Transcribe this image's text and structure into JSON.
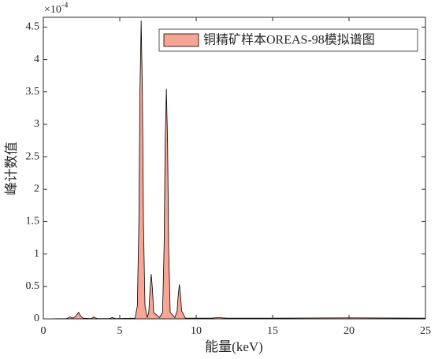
{
  "chart_data": {
    "type": "area",
    "xlabel": "能量(keV)",
    "ylabel": "峰计数值",
    "y_scale_base": "×10",
    "y_scale_exponent": "-4",
    "x": [
      0,
      1.5,
      1.6,
      1.74,
      1.88,
      2.0,
      2.15,
      2.31,
      2.45,
      2.6,
      3.1,
      3.2,
      3.31,
      3.42,
      3.55,
      4.3,
      4.4,
      4.51,
      4.62,
      4.75,
      6.0,
      6.15,
      6.25,
      6.32,
      6.4,
      6.48,
      6.55,
      6.65,
      6.8,
      6.9,
      6.98,
      7.06,
      7.14,
      7.22,
      7.6,
      7.8,
      7.9,
      7.97,
      8.05,
      8.13,
      8.2,
      8.3,
      8.6,
      8.75,
      8.83,
      8.9,
      8.97,
      9.05,
      9.3,
      11,
      11.4,
      12,
      15,
      20,
      25
    ],
    "series": [
      {
        "name": "铜精矿样本OREAS-98模拟谱图",
        "color": "#f7a594",
        "edge_color": "#000000",
        "values": [
          0,
          0.005,
          0.012,
          0.03,
          0.012,
          0.02,
          0.05,
          0.1,
          0.04,
          0.01,
          0.005,
          0.012,
          0.03,
          0.012,
          0.005,
          0.005,
          0.01,
          0.02,
          0.01,
          0.005,
          0.01,
          0.2,
          1.5,
          3.5,
          4.6,
          3.5,
          1.5,
          0.2,
          0.02,
          0.1,
          0.45,
          0.69,
          0.45,
          0.1,
          0.02,
          0.1,
          1.1,
          2.7,
          3.55,
          2.7,
          1.1,
          0.1,
          0.02,
          0.12,
          0.38,
          0.53,
          0.38,
          0.12,
          0.01,
          0.01,
          0.02,
          0.01,
          0.01,
          0.015,
          0.01
        ]
      }
    ],
    "xlim": [
      0,
      25
    ],
    "xticks": [
      0,
      5,
      10,
      15,
      20,
      25
    ],
    "ylim": [
      0,
      4.65
    ],
    "yticks": [
      0,
      0.5,
      1,
      1.5,
      2,
      2.5,
      3,
      3.5,
      4,
      4.5
    ],
    "legend": "northeast"
  }
}
